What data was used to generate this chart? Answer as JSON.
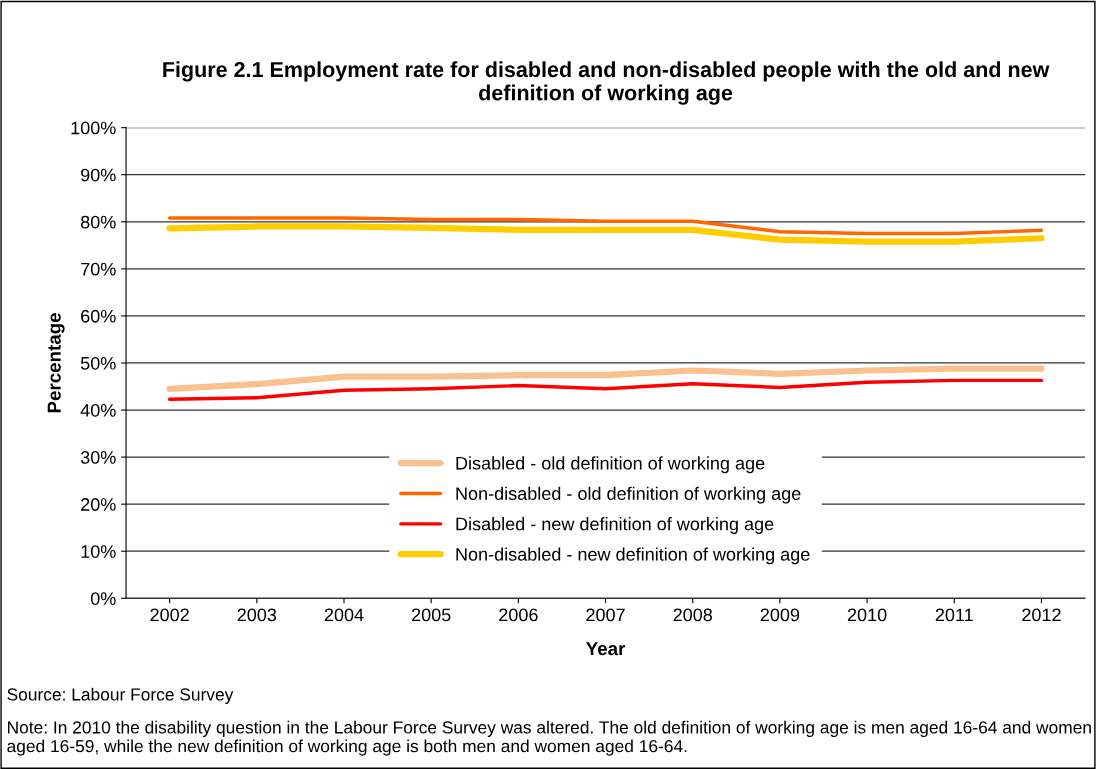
{
  "chart_data": {
    "type": "line",
    "title": "Figure 2.1 Employment rate for disabled and non-disabled people with the old and new definition of working age",
    "xlabel": "Year",
    "ylabel": "Percentage",
    "categories": [
      "2002",
      "2003",
      "2004",
      "2005",
      "2006",
      "2007",
      "2008",
      "2009",
      "2010",
      "2011",
      "2012"
    ],
    "series": [
      {
        "name": "Disabled - old definition of working age",
        "color": "#fac090",
        "values": [
          44.5,
          45.5,
          47.1,
          47.1,
          47.4,
          47.4,
          48.4,
          47.7,
          48.4,
          48.8,
          48.8
        ]
      },
      {
        "name": "Non-disabled - old definition of working age",
        "color": "#ff6600",
        "values": [
          80.8,
          80.8,
          80.8,
          80.5,
          80.5,
          80.1,
          80.1,
          77.9,
          77.5,
          77.5,
          78.2
        ]
      },
      {
        "name": "Disabled - new definition of working age",
        "color": "#ff0000",
        "values": [
          42.3,
          42.6,
          44.2,
          44.5,
          45.2,
          44.5,
          45.6,
          44.8,
          45.9,
          46.3,
          46.3
        ]
      },
      {
        "name": "Non-disabled - new definition of working age",
        "color": "#ffcc00",
        "values": [
          78.6,
          79.0,
          79.0,
          78.7,
          78.3,
          78.3,
          78.3,
          76.2,
          75.8,
          75.8,
          76.5
        ]
      }
    ],
    "ylim": [
      0,
      100
    ],
    "yticks": [
      {
        "value": 0,
        "label": "0%"
      },
      {
        "value": 10,
        "label": "10%"
      },
      {
        "value": 20,
        "label": "20%"
      },
      {
        "value": 30,
        "label": "30%"
      },
      {
        "value": 40,
        "label": "40%"
      },
      {
        "value": 50,
        "label": "50%"
      },
      {
        "value": 60,
        "label": "60%"
      },
      {
        "value": 70,
        "label": "70%"
      },
      {
        "value": 80,
        "label": "80%"
      },
      {
        "value": 90,
        "label": "90%"
      },
      {
        "value": 100,
        "label": "100%"
      }
    ],
    "grid": "y",
    "legend": "bottom",
    "marker": "none",
    "line_style": "solid",
    "annotations": [
      "Source: Labour Force Survey",
      "Note: In 2010 the disability question in the Labour Force Survey was altered. The old definition of working age is men aged 16-64 and women aged 16-59, while the new definition of working age is both men and women aged 16-64."
    ]
  }
}
